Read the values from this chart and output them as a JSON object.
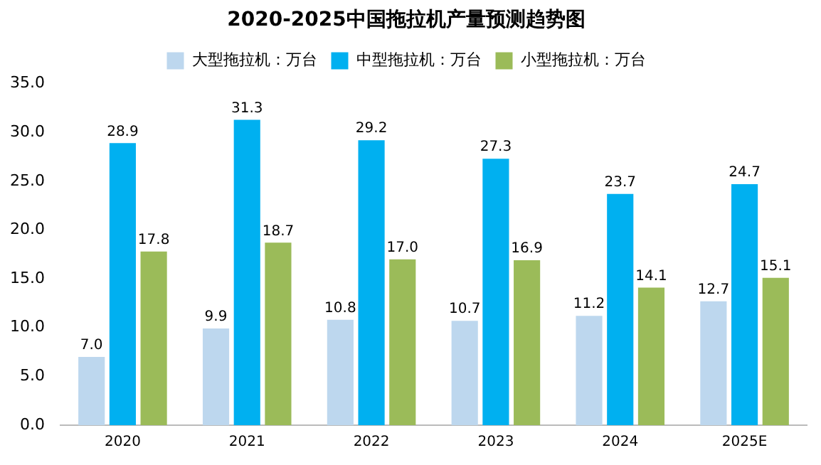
{
  "chart_data": {
    "type": "bar",
    "title": "2020-2025中国拖拉机产量预测趋势图",
    "categories": [
      "2020",
      "2021",
      "2022",
      "2023",
      "2024",
      "2025E"
    ],
    "series": [
      {
        "name": "大型拖拉机：万台",
        "color": "#bdd7ee",
        "values": [
          7.0,
          9.9,
          10.8,
          10.7,
          11.2,
          12.7
        ],
        "value_labels": [
          "7.0",
          "9.9",
          "10.8",
          "10.7",
          "11.2",
          "12.7"
        ]
      },
      {
        "name": "中型拖拉机：万台",
        "color": "#00b0f0",
        "values": [
          28.9,
          31.3,
          29.2,
          27.3,
          23.7,
          24.7
        ],
        "value_labels": [
          "28.9",
          "31.3",
          "29.2",
          "27.3",
          "23.7",
          "24.7"
        ]
      },
      {
        "name": "小型拖拉机：万台",
        "color": "#9bbb59",
        "values": [
          17.8,
          18.7,
          17.0,
          16.9,
          14.1,
          15.1
        ],
        "value_labels": [
          "17.8",
          "18.7",
          "17.0",
          "16.9",
          "14.1",
          "15.1"
        ]
      }
    ],
    "ylim": [
      0,
      35
    ],
    "yticks": [
      {
        "value": 0,
        "label": "0.0"
      },
      {
        "value": 5,
        "label": "5.0"
      },
      {
        "value": 10,
        "label": "10.0"
      },
      {
        "value": 15,
        "label": "15.0"
      },
      {
        "value": 20,
        "label": "20.0"
      },
      {
        "value": 25,
        "label": "25.0"
      },
      {
        "value": 30,
        "label": "30.0"
      },
      {
        "value": 35,
        "label": "35.0"
      }
    ],
    "grid": false,
    "legend": "top"
  }
}
